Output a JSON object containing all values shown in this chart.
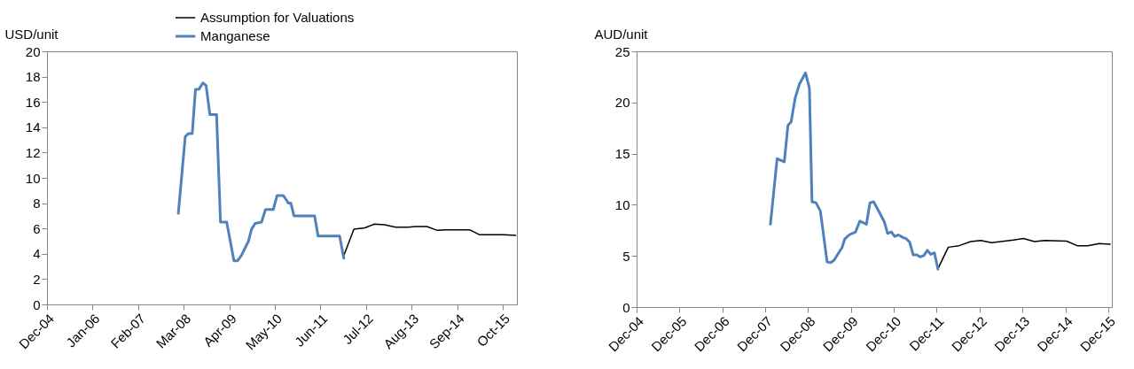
{
  "chart_data": [
    {
      "type": "line",
      "ylabel": "USD/unit",
      "legend": "top",
      "grid": false,
      "xlim": [
        "2004-12-01",
        "2016-02-01"
      ],
      "xticks": [
        {
          "value": "2004-12-01",
          "label": "Dec-04"
        },
        {
          "value": "2006-01-01",
          "label": "Jan-06"
        },
        {
          "value": "2007-02-01",
          "label": "Feb-07"
        },
        {
          "value": "2008-03-01",
          "label": "Mar-08"
        },
        {
          "value": "2009-04-01",
          "label": "Apr-09"
        },
        {
          "value": "2010-05-01",
          "label": "May-10"
        },
        {
          "value": "2011-06-01",
          "label": "Jun-11"
        },
        {
          "value": "2012-07-01",
          "label": "Jul-12"
        },
        {
          "value": "2013-08-01",
          "label": "Aug-13"
        },
        {
          "value": "2014-09-01",
          "label": "Sep-14"
        },
        {
          "value": "2015-10-01",
          "label": "Oct-15"
        }
      ],
      "ylim": [
        0,
        20
      ],
      "yticks": [
        0,
        2,
        4,
        6,
        8,
        10,
        12,
        14,
        16,
        18,
        20
      ],
      "series": [
        {
          "name": "Assumption for Valuations",
          "color": "#000000",
          "x": [
            "2011-12-21",
            "2012-03-18",
            "2012-06-21",
            "2012-09-12",
            "2012-12-09",
            "2013-03-15",
            "2013-07-03",
            "2013-09-01",
            "2013-12-12",
            "2014-03-12",
            "2014-05-24",
            "2014-12-18",
            "2015-03-15",
            "2015-10-09",
            "2016-01-21"
          ],
          "values": [
            3.85,
            5.95,
            6.05,
            6.35,
            6.3,
            6.1,
            6.1,
            6.15,
            6.15,
            5.85,
            5.9,
            5.9,
            5.5,
            5.5,
            5.45
          ]
        },
        {
          "name": "Manganese",
          "color": "#4f81bd",
          "x": [
            "2008-01-15",
            "2008-03-15",
            "2008-04-10",
            "2008-05-15",
            "2008-06-12",
            "2008-07-12",
            "2008-08-15",
            "2008-09-12",
            "2008-10-15",
            "2008-12-12",
            "2009-01-15",
            "2009-03-10",
            "2009-05-12",
            "2009-06-12",
            "2009-07-15",
            "2009-09-15",
            "2009-10-12",
            "2009-11-12",
            "2010-01-06",
            "2010-02-10",
            "2010-04-18",
            "2010-05-21",
            "2010-07-15",
            "2010-08-28",
            "2010-09-18",
            "2010-10-15",
            "2011-04-12",
            "2011-05-12",
            "2011-11-15",
            "2011-12-21"
          ],
          "values": [
            7.2,
            13.25,
            13.5,
            13.5,
            17.0,
            17.0,
            17.5,
            17.3,
            15.0,
            15.0,
            6.5,
            6.5,
            3.45,
            3.45,
            3.85,
            5.0,
            5.95,
            6.4,
            6.5,
            7.5,
            7.5,
            8.6,
            8.6,
            8.0,
            8.0,
            7.0,
            7.0,
            5.4,
            5.4,
            3.65
          ]
        }
      ]
    },
    {
      "type": "line",
      "ylabel": "AUD/unit",
      "legend": "top",
      "grid": false,
      "xlim": [
        "2004-12-01",
        "2016-01-01"
      ],
      "xticks": [
        {
          "value": "2004-12-01",
          "label": "Dec-04"
        },
        {
          "value": "2005-12-01",
          "label": "Dec-05"
        },
        {
          "value": "2006-12-01",
          "label": "Dec-06"
        },
        {
          "value": "2007-12-01",
          "label": "Dec-07"
        },
        {
          "value": "2008-12-01",
          "label": "Dec-08"
        },
        {
          "value": "2009-12-01",
          "label": "Dec-09"
        },
        {
          "value": "2010-12-01",
          "label": "Dec-10"
        },
        {
          "value": "2011-12-01",
          "label": "Dec-11"
        },
        {
          "value": "2012-12-01",
          "label": "Dec-12"
        },
        {
          "value": "2013-12-01",
          "label": "Dec-13"
        },
        {
          "value": "2014-12-01",
          "label": "Dec-14"
        },
        {
          "value": "2015-12-01",
          "label": "Dec-15"
        }
      ],
      "ylim": [
        0,
        25
      ],
      "yticks": [
        0,
        5,
        10,
        15,
        20,
        25
      ],
      "series": [
        {
          "name": "Assumption for Valuations",
          "color": "#000000",
          "x": [
            "2011-12-12",
            "2012-03-09",
            "2012-06-09",
            "2012-09-15",
            "2012-12-12",
            "2013-03-12",
            "2013-09-15",
            "2013-12-09",
            "2014-03-12",
            "2014-06-09",
            "2014-12-12",
            "2015-03-12",
            "2015-06-09",
            "2015-09-15",
            "2015-12-18"
          ],
          "values": [
            3.75,
            5.85,
            6.0,
            6.4,
            6.5,
            6.3,
            6.55,
            6.7,
            6.4,
            6.5,
            6.45,
            6.0,
            6.0,
            6.2,
            6.15
          ]
        },
        {
          "name": "Manganese",
          "color": "#4f81bd",
          "x": [
            "2008-01-15",
            "2008-03-12",
            "2008-05-12",
            "2008-06-12",
            "2008-07-09",
            "2008-08-12",
            "2008-09-18",
            "2008-11-09",
            "2008-12-12",
            "2009-01-03",
            "2009-02-06",
            "2009-03-15",
            "2009-05-12",
            "2009-06-12",
            "2009-07-12",
            "2009-08-18",
            "2009-09-15",
            "2009-10-09",
            "2009-11-15",
            "2010-01-09",
            "2010-02-15",
            "2010-04-12",
            "2010-05-12",
            "2010-06-12",
            "2010-08-12",
            "2010-09-12",
            "2010-10-09",
            "2010-11-09",
            "2010-12-09",
            "2011-01-09",
            "2011-02-18",
            "2011-03-15",
            "2011-04-15",
            "2011-05-15",
            "2011-06-15",
            "2011-07-15",
            "2011-08-15",
            "2011-09-12",
            "2011-10-12",
            "2011-11-12",
            "2011-12-12"
          ],
          "values": [
            8.1,
            14.5,
            14.2,
            17.75,
            18.1,
            20.4,
            21.8,
            22.9,
            21.4,
            10.3,
            10.2,
            9.4,
            4.4,
            4.35,
            4.6,
            5.3,
            5.8,
            6.65,
            7.05,
            7.35,
            8.4,
            8.1,
            10.2,
            10.3,
            9.0,
            8.3,
            7.2,
            7.35,
            6.9,
            7.05,
            6.8,
            6.7,
            6.35,
            5.1,
            5.1,
            4.9,
            5.05,
            5.55,
            5.15,
            5.3,
            3.7
          ]
        }
      ]
    }
  ]
}
